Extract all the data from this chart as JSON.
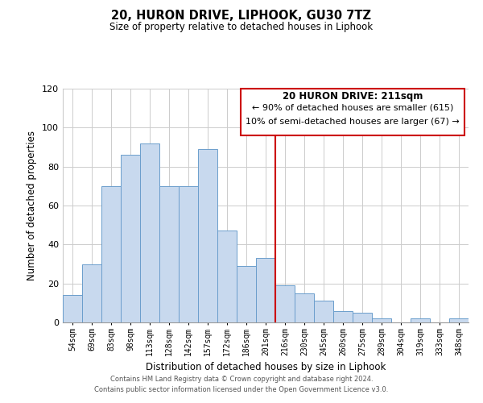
{
  "title": "20, HURON DRIVE, LIPHOOK, GU30 7TZ",
  "subtitle": "Size of property relative to detached houses in Liphook",
  "xlabel": "Distribution of detached houses by size in Liphook",
  "ylabel": "Number of detached properties",
  "bar_labels": [
    "54sqm",
    "69sqm",
    "83sqm",
    "98sqm",
    "113sqm",
    "128sqm",
    "142sqm",
    "157sqm",
    "172sqm",
    "186sqm",
    "201sqm",
    "216sqm",
    "230sqm",
    "245sqm",
    "260sqm",
    "275sqm",
    "289sqm",
    "304sqm",
    "319sqm",
    "333sqm",
    "348sqm"
  ],
  "bar_values": [
    14,
    30,
    70,
    86,
    92,
    70,
    70,
    89,
    47,
    29,
    33,
    19,
    15,
    11,
    6,
    5,
    2,
    0,
    2,
    0,
    2
  ],
  "bar_color": "#c8d9ee",
  "bar_edge_color": "#6b9ecc",
  "vline_x_index": 11,
  "vline_color": "#cc0000",
  "ylim": [
    0,
    120
  ],
  "yticks": [
    0,
    20,
    40,
    60,
    80,
    100,
    120
  ],
  "annotation_title": "20 HURON DRIVE: 211sqm",
  "annotation_line1": "← 90% of detached houses are smaller (615)",
  "annotation_line2": "10% of semi-detached houses are larger (67) →",
  "annotation_box_color": "#ffffff",
  "annotation_box_edge": "#cc0000",
  "footer_line1": "Contains HM Land Registry data © Crown copyright and database right 2024.",
  "footer_line2": "Contains public sector information licensed under the Open Government Licence v3.0.",
  "background_color": "#ffffff",
  "grid_color": "#cccccc"
}
